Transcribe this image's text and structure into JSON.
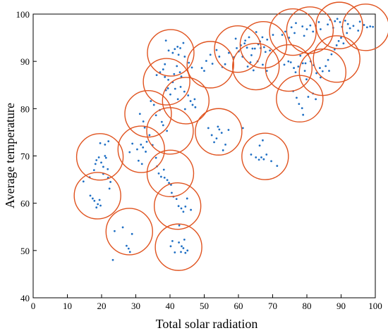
{
  "chart_data": {
    "type": "scatter",
    "title": "",
    "xlabel": "Total solar radiation",
    "ylabel": "Average temperature",
    "xlim": [
      0,
      100
    ],
    "ylim": [
      40,
      100
    ],
    "xticks": [
      "0",
      "10",
      "20",
      "30",
      "40",
      "50",
      "60",
      "70",
      "80",
      "90",
      "100"
    ],
    "yticks": [
      "40",
      "50",
      "60",
      "70",
      "80",
      "90",
      "100"
    ],
    "grid": false,
    "point_color": "#1f6fc4",
    "circle_color": "#e0531f",
    "points": [
      [
        14.7,
        64.6
      ],
      [
        16.5,
        65.5
      ],
      [
        17.8,
        67.0
      ],
      [
        18.2,
        68.3
      ],
      [
        18.5,
        69.1
      ],
      [
        19.2,
        69.7
      ],
      [
        19.9,
        68.6
      ],
      [
        20.5,
        67.7
      ],
      [
        21.0,
        70.0
      ],
      [
        21.3,
        69.6
      ],
      [
        21.8,
        67.2
      ],
      [
        20.5,
        66.2
      ],
      [
        21.9,
        65.4
      ],
      [
        22.6,
        64.5
      ],
      [
        22.3,
        63.1
      ],
      [
        21.0,
        72.4
      ],
      [
        19.6,
        72.7
      ],
      [
        22.0,
        73.1
      ],
      [
        16.7,
        61.6
      ],
      [
        17.4,
        61.0
      ],
      [
        17.9,
        60.5
      ],
      [
        18.5,
        59.1
      ],
      [
        18.9,
        59.8
      ],
      [
        19.7,
        59.5
      ],
      [
        19.4,
        60.7
      ],
      [
        23.8,
        54.1
      ],
      [
        26.2,
        54.9
      ],
      [
        27.3,
        51.0
      ],
      [
        27.9,
        50.4
      ],
      [
        28.3,
        49.7
      ],
      [
        28.9,
        53.5
      ],
      [
        23.3,
        48.0
      ],
      [
        28.2,
        70.8
      ],
      [
        29.0,
        72.6
      ],
      [
        30.4,
        71.4
      ],
      [
        31.5,
        72.4
      ],
      [
        32.1,
        71.8
      ],
      [
        32.9,
        70.9
      ],
      [
        33.2,
        73.0
      ],
      [
        31.8,
        68.3
      ],
      [
        30.8,
        69.0
      ],
      [
        31.2,
        78.9
      ],
      [
        32.2,
        77.3
      ],
      [
        32.6,
        76.0
      ],
      [
        34.0,
        74.4
      ],
      [
        34.9,
        72.3
      ],
      [
        35.9,
        78.6
      ],
      [
        35.3,
        80.8
      ],
      [
        37.0,
        79.7
      ],
      [
        37.6,
        77.2
      ],
      [
        38.0,
        76.5
      ],
      [
        39.1,
        75.3
      ],
      [
        34.4,
        81.6
      ],
      [
        35.9,
        69.6
      ],
      [
        36.2,
        67.8
      ],
      [
        36.7,
        66.3
      ],
      [
        37.4,
        65.6
      ],
      [
        38.4,
        65.4
      ],
      [
        39.2,
        64.9
      ],
      [
        39.7,
        64.3
      ],
      [
        40.3,
        63.9
      ],
      [
        38.2,
        67.1
      ],
      [
        40.5,
        62.2
      ],
      [
        41.0,
        61.4
      ],
      [
        41.9,
        60.9
      ],
      [
        42.5,
        59.4
      ],
      [
        43.3,
        58.9
      ],
      [
        43.9,
        58.2
      ],
      [
        44.5,
        59.3
      ],
      [
        45.0,
        61.0
      ],
      [
        46.1,
        58.6
      ],
      [
        42.7,
        55.3
      ],
      [
        40.2,
        50.9
      ],
      [
        40.7,
        52.0
      ],
      [
        42.6,
        51.7
      ],
      [
        43.4,
        50.9
      ],
      [
        43.9,
        50.5
      ],
      [
        44.2,
        52.3
      ],
      [
        45.1,
        50.0
      ],
      [
        44.5,
        49.5
      ],
      [
        43.2,
        49.7
      ],
      [
        41.4,
        49.6
      ],
      [
        38.8,
        83.9
      ],
      [
        39.4,
        84.3
      ],
      [
        40.1,
        83.0
      ],
      [
        41.5,
        84.2
      ],
      [
        42.3,
        82.0
      ],
      [
        43.1,
        84.6
      ],
      [
        44.2,
        83.6
      ],
      [
        45.3,
        82.8
      ],
      [
        46.0,
        81.6
      ],
      [
        46.6,
        80.8
      ],
      [
        47.2,
        82.0
      ],
      [
        47.4,
        80.3
      ],
      [
        44.4,
        79.9
      ],
      [
        36.1,
        87.1
      ],
      [
        37.1,
        87.7
      ],
      [
        38.0,
        88.3
      ],
      [
        38.5,
        86.7
      ],
      [
        39.5,
        86.1
      ],
      [
        40.8,
        85.6
      ],
      [
        41.2,
        87.3
      ],
      [
        42.0,
        89.0
      ],
      [
        42.9,
        87.7
      ],
      [
        43.3,
        86.8
      ],
      [
        38.5,
        89.4
      ],
      [
        39.6,
        92.3
      ],
      [
        40.8,
        91.8
      ],
      [
        41.4,
        92.6
      ],
      [
        42.2,
        93.1
      ],
      [
        43.0,
        92.8
      ],
      [
        42.5,
        91.4
      ],
      [
        44.3,
        91.0
      ],
      [
        43.9,
        93.9
      ],
      [
        45.5,
        89.7
      ],
      [
        46.4,
        88.7
      ],
      [
        38.8,
        94.4
      ],
      [
        49.3,
        88.6
      ],
      [
        50.0,
        88.0
      ],
      [
        50.6,
        90.1
      ],
      [
        51.8,
        91.4
      ],
      [
        52.4,
        89.5
      ],
      [
        53.6,
        92.4
      ],
      [
        54.4,
        91.0
      ],
      [
        55.3,
        88.8
      ],
      [
        56.1,
        89.4
      ],
      [
        57.2,
        91.8
      ],
      [
        58.7,
        90.9
      ],
      [
        59.5,
        92.8
      ],
      [
        60.1,
        92.1
      ],
      [
        60.7,
        93.4
      ],
      [
        61.2,
        91.0
      ],
      [
        62.0,
        94.4
      ],
      [
        62.5,
        92.9
      ],
      [
        63.1,
        95.1
      ],
      [
        63.8,
        91.3
      ],
      [
        59.2,
        94.8
      ],
      [
        61.8,
        93.8
      ],
      [
        65.8,
        93.6
      ],
      [
        66.3,
        94.2
      ],
      [
        67.0,
        95.1
      ],
      [
        67.5,
        93.0
      ],
      [
        68.4,
        94.6
      ],
      [
        69.2,
        92.3
      ],
      [
        70.1,
        95.6
      ],
      [
        65.2,
        96.2
      ],
      [
        64.1,
        92.7
      ],
      [
        67.9,
        92.0
      ],
      [
        62.7,
        88.9
      ],
      [
        63.5,
        89.8
      ],
      [
        64.4,
        88.1
      ],
      [
        65.6,
        90.0
      ],
      [
        66.5,
        92.8
      ],
      [
        67.1,
        89.3
      ],
      [
        68.3,
        88.0
      ],
      [
        64.8,
        92.7
      ],
      [
        73.4,
        89.3
      ],
      [
        74.6,
        90.0
      ],
      [
        75.3,
        89.8
      ],
      [
        76.2,
        88.6
      ],
      [
        76.7,
        87.7
      ],
      [
        77.5,
        88.9
      ],
      [
        78.1,
        91.2
      ],
      [
        78.8,
        89.6
      ],
      [
        79.4,
        88.0
      ],
      [
        80.4,
        91.5
      ],
      [
        79.6,
        89.6
      ],
      [
        72.8,
        95.6
      ],
      [
        73.7,
        96.3
      ],
      [
        74.8,
        95.0
      ],
      [
        75.5,
        97.2
      ],
      [
        76.4,
        96.0
      ],
      [
        76.8,
        98.1
      ],
      [
        78.7,
        97.4
      ],
      [
        79.2,
        95.4
      ],
      [
        80.0,
        96.8
      ],
      [
        81.0,
        97.6
      ],
      [
        81.8,
        96.3
      ],
      [
        82.6,
        97.5
      ],
      [
        83.5,
        98.3
      ],
      [
        84.0,
        96.8
      ],
      [
        81.1,
        90.0
      ],
      [
        82.0,
        89.2
      ],
      [
        82.8,
        87.5
      ],
      [
        83.8,
        88.6
      ],
      [
        84.6,
        87.9
      ],
      [
        85.5,
        89.0
      ],
      [
        86.2,
        90.3
      ],
      [
        87.2,
        91.5
      ],
      [
        88.1,
        92.5
      ],
      [
        88.7,
        93.4
      ],
      [
        89.3,
        94.3
      ],
      [
        90.0,
        95.0
      ],
      [
        90.7,
        93.8
      ],
      [
        86.5,
        88.0
      ],
      [
        84.0,
        86.6
      ],
      [
        86.1,
        97.8
      ],
      [
        86.8,
        98.8
      ],
      [
        87.7,
        97.1
      ],
      [
        88.2,
        98.5
      ],
      [
        88.9,
        99.0
      ],
      [
        89.7,
        98.3
      ],
      [
        90.3,
        97.3
      ],
      [
        91.2,
        98.6
      ],
      [
        92.0,
        97.9
      ],
      [
        92.6,
        97.0
      ],
      [
        91.7,
        96.0
      ],
      [
        93.6,
        97.5
      ],
      [
        95.5,
        98.4
      ],
      [
        96.7,
        97.7
      ],
      [
        97.6,
        97.2
      ],
      [
        98.5,
        97.4
      ],
      [
        99.3,
        97.3
      ],
      [
        95.0,
        96.5
      ],
      [
        76.0,
        83.7
      ],
      [
        77.0,
        82.3
      ],
      [
        77.7,
        81.0
      ],
      [
        78.6,
        80.1
      ],
      [
        78.9,
        78.7
      ],
      [
        80.4,
        82.5
      ],
      [
        81.8,
        83.2
      ],
      [
        82.6,
        82.0
      ],
      [
        79.9,
        86.2
      ],
      [
        51.2,
        75.9
      ],
      [
        52.2,
        74.4
      ],
      [
        52.9,
        72.9
      ],
      [
        53.6,
        73.7
      ],
      [
        54.4,
        75.6
      ],
      [
        55.1,
        74.9
      ],
      [
        56.2,
        72.4
      ],
      [
        55.5,
        71.2
      ],
      [
        57.1,
        75.5
      ],
      [
        61.3,
        75.9
      ],
      [
        54.0,
        76.2
      ],
      [
        63.7,
        70.3
      ],
      [
        65.1,
        69.7
      ],
      [
        66.0,
        69.2
      ],
      [
        66.7,
        69.7
      ],
      [
        67.4,
        69.3
      ],
      [
        68.2,
        70.3
      ],
      [
        69.6,
        68.9
      ],
      [
        71.3,
        67.9
      ],
      [
        67.1,
        73.3
      ],
      [
        66.2,
        72.2
      ]
    ],
    "circles": [
      [
        19.5,
        69.8
      ],
      [
        18.8,
        61.6
      ],
      [
        28.1,
        54.0
      ],
      [
        31.6,
        71.4
      ],
      [
        33.6,
        78.9
      ],
      [
        40.0,
        75.3
      ],
      [
        40.1,
        66.3
      ],
      [
        42.2,
        59.4
      ],
      [
        42.5,
        50.7
      ],
      [
        39.0,
        85.7
      ],
      [
        44.6,
        81.7
      ],
      [
        40.2,
        91.8
      ],
      [
        51.8,
        89.3
      ],
      [
        59.8,
        92.6
      ],
      [
        67.3,
        93.5
      ],
      [
        65.1,
        88.9
      ],
      [
        54.2,
        75.1
      ],
      [
        67.8,
        69.9
      ],
      [
        74.7,
        88.6
      ],
      [
        77.9,
        82.1
      ],
      [
        75.9,
        96.2
      ],
      [
        80.9,
        96.6
      ],
      [
        84.6,
        87.7
      ],
      [
        88.7,
        90.5
      ],
      [
        89.5,
        97.6
      ],
      [
        97.2,
        97.2
      ]
    ]
  }
}
